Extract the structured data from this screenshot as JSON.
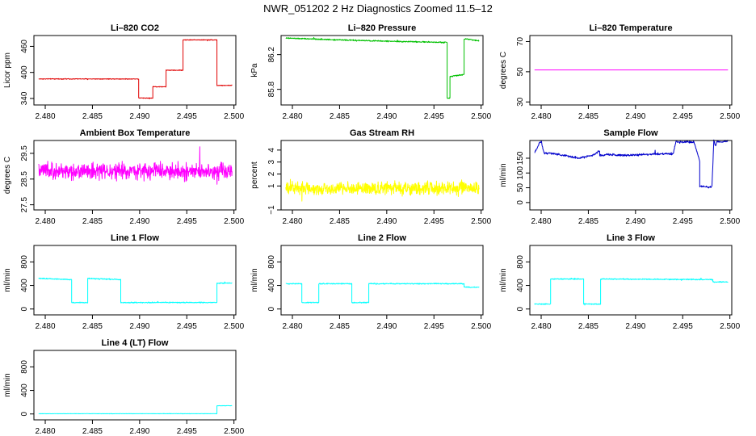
{
  "title": "NWR_051202  2 Hz Diagnostics Zoomed 11.5–12",
  "chart_data": [
    {
      "type": "line",
      "title": "Li–820 CO2",
      "xlabel": "",
      "ylabel": "Licor ppm",
      "color": "#e00000",
      "xlim": [
        2.4788,
        2.5002
      ],
      "ylim": [
        325,
        485
      ],
      "xticks": [
        2.48,
        2.485,
        2.49,
        2.495,
        2.5
      ],
      "xtick_labels": [
        "2.480",
        "2.485",
        "2.490",
        "2.495",
        "2.500"
      ],
      "yticks": [
        340,
        400,
        460
      ],
      "ytick_labels": [
        "340",
        "400",
        "460"
      ],
      "series": [
        {
          "name": "CO2",
          "noise": 0.6,
          "x": [
            2.4793,
            2.4899,
            2.4899,
            2.4914,
            2.4914,
            2.4928,
            2.4928,
            2.4946,
            2.4946,
            2.4982,
            2.4982,
            2.4998
          ],
          "y": [
            385,
            385,
            341,
            341,
            367,
            367,
            405,
            405,
            475,
            475,
            370,
            370
          ]
        }
      ]
    },
    {
      "type": "line",
      "title": "Li–820 Pressure",
      "xlabel": "",
      "ylabel": "kPa",
      "color": "#00c000",
      "xlim": [
        2.4788,
        2.5002
      ],
      "ylim": [
        85.62,
        86.42
      ],
      "xticks": [
        2.48,
        2.485,
        2.49,
        2.495,
        2.5
      ],
      "xtick_labels": [
        "2.480",
        "2.485",
        "2.490",
        "2.495",
        "2.500"
      ],
      "yticks": [
        85.8,
        86.2
      ],
      "ytick_labels": [
        "85.8",
        "86.2"
      ],
      "series": [
        {
          "name": "Pressure",
          "noise": 0.005,
          "x": [
            2.4793,
            2.482,
            2.485,
            2.488,
            2.492,
            2.4964,
            2.4964,
            2.4967,
            2.4967,
            2.4982,
            2.4982,
            2.4985,
            2.4998
          ],
          "y": [
            86.39,
            86.38,
            86.37,
            86.36,
            86.35,
            86.34,
            85.7,
            85.7,
            85.95,
            85.97,
            86.38,
            86.38,
            86.36
          ]
        }
      ]
    },
    {
      "type": "line",
      "title": "Li–820 Temperature",
      "xlabel": "",
      "ylabel": "degrees C",
      "color": "#ff00ff",
      "xlim": [
        2.4788,
        2.5002
      ],
      "ylim": [
        28,
        74
      ],
      "xticks": [
        2.48,
        2.485,
        2.49,
        2.495,
        2.5
      ],
      "xtick_labels": [
        "2.480",
        "2.485",
        "2.490",
        "2.495",
        "2.500"
      ],
      "yticks": [
        30,
        50,
        70
      ],
      "ytick_labels": [
        "30",
        "50",
        "70"
      ],
      "series": [
        {
          "name": "Temperature",
          "noise": 0,
          "x": [
            2.4793,
            2.4998
          ],
          "y": [
            51.2,
            51.2
          ]
        }
      ]
    },
    {
      "type": "line",
      "title": "Ambient Box Temperature",
      "xlabel": "",
      "ylabel": "degrees C",
      "color": "#ff00ff",
      "xlim": [
        2.4788,
        2.5002
      ],
      "ylim": [
        27.3,
        30.0
      ],
      "xticks": [
        2.48,
        2.485,
        2.49,
        2.495,
        2.5
      ],
      "xtick_labels": [
        "2.480",
        "2.485",
        "2.490",
        "2.495",
        "2.500"
      ],
      "yticks": [
        27.5,
        28.5,
        29.5
      ],
      "ytick_labels": [
        "27.5",
        "28.5",
        "29.5"
      ],
      "series": [
        {
          "name": "Box Temperature",
          "noise": 0.22,
          "x": [
            2.4793,
            2.4998
          ],
          "y": [
            28.8,
            28.8
          ]
        }
      ]
    },
    {
      "type": "line",
      "title": "Gas Stream RH",
      "xlabel": "",
      "ylabel": "percent",
      "color": "#ffff00",
      "xlim": [
        2.4788,
        2.5002
      ],
      "ylim": [
        -1.0,
        4.8
      ],
      "xticks": [
        2.48,
        2.485,
        2.49,
        2.495,
        2.5
      ],
      "xtick_labels": [
        "2.480",
        "2.485",
        "2.490",
        "2.495",
        "2.500"
      ],
      "yticks": [
        -1,
        1,
        2,
        3,
        4
      ],
      "ytick_labels": [
        "−1",
        "1",
        "2",
        "3",
        "4"
      ],
      "series": [
        {
          "name": "RH",
          "noise": 0.38,
          "x": [
            2.4793,
            2.4998
          ],
          "y": [
            0.8,
            0.8
          ]
        }
      ]
    },
    {
      "type": "line",
      "title": "Sample Flow",
      "xlabel": "",
      "ylabel": "ml/min",
      "color": "#0000cc",
      "xlim": [
        2.4788,
        2.5002
      ],
      "ylim": [
        -25,
        210
      ],
      "xticks": [
        2.48,
        2.485,
        2.49,
        2.495,
        2.5
      ],
      "xtick_labels": [
        "2.480",
        "2.485",
        "2.490",
        "2.495",
        "2.500"
      ],
      "yticks": [
        0,
        50,
        100,
        150
      ],
      "ytick_labels": [
        "0",
        "50",
        "100",
        "150"
      ],
      "series": [
        {
          "name": "Sample Flow",
          "noise": 2.5,
          "x": [
            2.4793,
            2.4798,
            2.48,
            2.4803,
            2.4815,
            2.484,
            2.4855,
            2.4862,
            2.4862,
            2.487,
            2.4895,
            2.4925,
            2.494,
            2.4943,
            2.4945,
            2.4962,
            2.4968,
            2.4968,
            2.4978,
            2.4981,
            2.4983,
            2.4985,
            2.4986,
            2.4998
          ],
          "y": [
            168,
            200,
            208,
            168,
            165,
            150,
            160,
            175,
            158,
            162,
            160,
            165,
            165,
            210,
            205,
            205,
            140,
            55,
            52,
            55,
            210,
            190,
            205,
            208
          ]
        }
      ]
    },
    {
      "type": "line",
      "title": "Line 1 Flow",
      "xlabel": "",
      "ylabel": "ml/min",
      "color": "#00ffff",
      "xlim": [
        2.4788,
        2.5002
      ],
      "ylim": [
        -100,
        1080
      ],
      "xticks": [
        2.48,
        2.485,
        2.49,
        2.495,
        2.5
      ],
      "xtick_labels": [
        "2.480",
        "2.485",
        "2.490",
        "2.495",
        "2.500"
      ],
      "yticks": [
        0,
        400,
        800
      ],
      "ytick_labels": [
        "0",
        "400",
        "800"
      ],
      "series": [
        {
          "name": "Line 1 Flow",
          "noise": 6,
          "x": [
            2.4793,
            2.4828,
            2.4828,
            2.4845,
            2.4845,
            2.488,
            2.488,
            2.4982,
            2.4982,
            2.4998
          ],
          "y": [
            520,
            500,
            110,
            110,
            520,
            500,
            110,
            110,
            440,
            440
          ]
        }
      ]
    },
    {
      "type": "line",
      "title": "Line 2 Flow",
      "xlabel": "",
      "ylabel": "ml/min",
      "color": "#00ffff",
      "xlim": [
        2.4788,
        2.5002
      ],
      "ylim": [
        -100,
        1080
      ],
      "xticks": [
        2.48,
        2.485,
        2.49,
        2.495,
        2.5
      ],
      "xtick_labels": [
        "2.480",
        "2.485",
        "2.490",
        "2.495",
        "2.500"
      ],
      "yticks": [
        0,
        400,
        800
      ],
      "ytick_labels": [
        "0",
        "400",
        "800"
      ],
      "series": [
        {
          "name": "Line 2 Flow",
          "noise": 6,
          "x": [
            2.4793,
            2.481,
            2.481,
            2.4828,
            2.4828,
            2.4863,
            2.4863,
            2.4881,
            2.4881,
            2.4982,
            2.4982,
            2.4998
          ],
          "y": [
            430,
            430,
            110,
            110,
            430,
            430,
            110,
            110,
            430,
            430,
            370,
            370
          ]
        }
      ]
    },
    {
      "type": "line",
      "title": "Line 3 Flow",
      "xlabel": "",
      "ylabel": "ml/min",
      "color": "#00ffff",
      "xlim": [
        2.4788,
        2.5002
      ],
      "ylim": [
        -100,
        1080
      ],
      "xticks": [
        2.48,
        2.485,
        2.49,
        2.495,
        2.5
      ],
      "xtick_labels": [
        "2.480",
        "2.485",
        "2.490",
        "2.495",
        "2.500"
      ],
      "yticks": [
        0,
        400,
        800
      ],
      "ytick_labels": [
        "0",
        "400",
        "800"
      ],
      "series": [
        {
          "name": "Line 3 Flow",
          "noise": 6,
          "x": [
            2.4793,
            2.481,
            2.481,
            2.4845,
            2.4845,
            2.4863,
            2.4863,
            2.4982,
            2.4982,
            2.4998
          ],
          "y": [
            85,
            85,
            510,
            510,
            85,
            85,
            510,
            500,
            460,
            460
          ]
        }
      ]
    },
    {
      "type": "line",
      "title": "Line 4 (LT) Flow",
      "xlabel": "",
      "ylabel": "ml/min",
      "color": "#00ffff",
      "xlim": [
        2.4788,
        2.5002
      ],
      "ylim": [
        -100,
        1080
      ],
      "xticks": [
        2.48,
        2.485,
        2.49,
        2.495,
        2.5
      ],
      "xtick_labels": [
        "2.480",
        "2.485",
        "2.490",
        "2.495",
        "2.500"
      ],
      "yticks": [
        0,
        400,
        800
      ],
      "ytick_labels": [
        "0",
        "400",
        "800"
      ],
      "series": [
        {
          "name": "Line 4 Flow",
          "noise": 2,
          "x": [
            2.4793,
            2.4982,
            2.4982,
            2.4998
          ],
          "y": [
            5,
            5,
            140,
            140
          ]
        }
      ]
    }
  ]
}
